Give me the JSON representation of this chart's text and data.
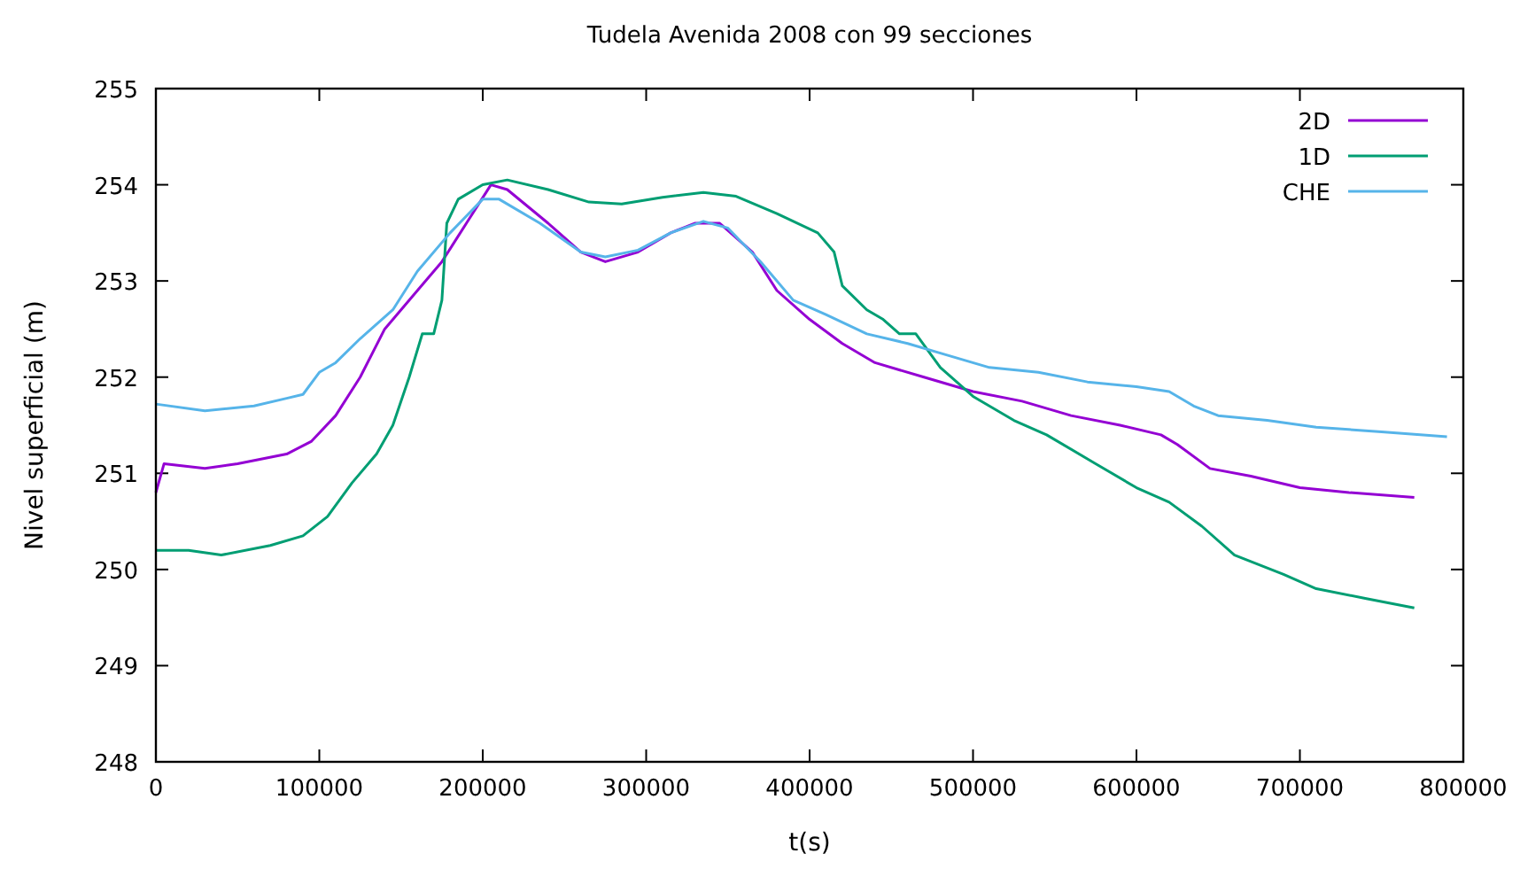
{
  "chart_data": {
    "type": "line",
    "title": "Tudela Avenida 2008 con 99 secciones",
    "xlabel": "t(s)",
    "ylabel": "Nivel superficial (m)",
    "xlim": [
      0,
      800000
    ],
    "xticks": [
      0,
      100000,
      200000,
      300000,
      400000,
      500000,
      600000,
      700000,
      800000
    ],
    "ylim": [
      248,
      255
    ],
    "yticks": [
      248,
      249,
      250,
      251,
      252,
      253,
      254,
      255
    ],
    "grid": false,
    "legend": "top right",
    "line_style": "solid",
    "series": [
      {
        "name": "2D",
        "color": "#9400d3",
        "x": [
          0,
          5000,
          30000,
          50000,
          80000,
          95000,
          110000,
          125000,
          140000,
          160000,
          175000,
          190000,
          205000,
          215000,
          240000,
          260000,
          275000,
          295000,
          315000,
          330000,
          345000,
          365000,
          380000,
          400000,
          420000,
          440000,
          470000,
          500000,
          530000,
          560000,
          590000,
          615000,
          625000,
          645000,
          670000,
          700000,
          730000,
          770000
        ],
        "values": [
          250.8,
          251.1,
          251.05,
          251.1,
          251.2,
          251.33,
          251.6,
          252.0,
          252.5,
          252.9,
          253.2,
          253.6,
          254.0,
          253.95,
          253.6,
          253.3,
          253.2,
          253.3,
          253.5,
          253.6,
          253.6,
          253.3,
          252.9,
          252.6,
          252.35,
          252.15,
          252.0,
          251.85,
          251.75,
          251.6,
          251.5,
          251.4,
          251.3,
          251.05,
          250.97,
          250.85,
          250.8,
          250.75
        ]
      },
      {
        "name": "1D",
        "color": "#009e73",
        "x": [
          0,
          20000,
          40000,
          70000,
          90000,
          105000,
          120000,
          135000,
          145000,
          155000,
          163000,
          170000,
          175000,
          178000,
          185000,
          200000,
          215000,
          240000,
          265000,
          285000,
          310000,
          335000,
          355000,
          380000,
          405000,
          415000,
          420000,
          435000,
          445000,
          455000,
          465000,
          480000,
          500000,
          525000,
          545000,
          575000,
          600000,
          620000,
          640000,
          660000,
          690000,
          710000,
          740000,
          770000
        ],
        "values": [
          250.2,
          250.2,
          250.15,
          250.25,
          250.35,
          250.55,
          250.9,
          251.2,
          251.5,
          252.0,
          252.45,
          252.45,
          252.8,
          253.6,
          253.85,
          254.0,
          254.05,
          253.95,
          253.82,
          253.8,
          253.87,
          253.92,
          253.88,
          253.7,
          253.5,
          253.3,
          252.95,
          252.7,
          252.6,
          252.45,
          252.45,
          252.1,
          251.8,
          251.55,
          251.4,
          251.1,
          250.85,
          250.7,
          250.45,
          250.15,
          249.95,
          249.8,
          249.7,
          249.6
        ]
      },
      {
        "name": "CHE",
        "color": "#56b4e9",
        "x": [
          0,
          30000,
          60000,
          80000,
          90000,
          100000,
          110000,
          125000,
          145000,
          160000,
          180000,
          200000,
          210000,
          235000,
          260000,
          275000,
          295000,
          315000,
          335000,
          350000,
          370000,
          390000,
          410000,
          435000,
          460000,
          480000,
          510000,
          540000,
          570000,
          600000,
          620000,
          635000,
          650000,
          680000,
          710000,
          750000,
          790000
        ],
        "values": [
          251.72,
          251.65,
          251.7,
          251.78,
          251.82,
          252.05,
          252.15,
          252.4,
          252.7,
          253.1,
          253.5,
          253.85,
          253.85,
          253.6,
          253.3,
          253.25,
          253.32,
          253.5,
          253.62,
          253.55,
          253.2,
          252.8,
          252.65,
          252.45,
          252.35,
          252.25,
          252.1,
          252.05,
          251.95,
          251.9,
          251.85,
          251.7,
          251.6,
          251.55,
          251.48,
          251.43,
          251.38
        ]
      }
    ]
  }
}
